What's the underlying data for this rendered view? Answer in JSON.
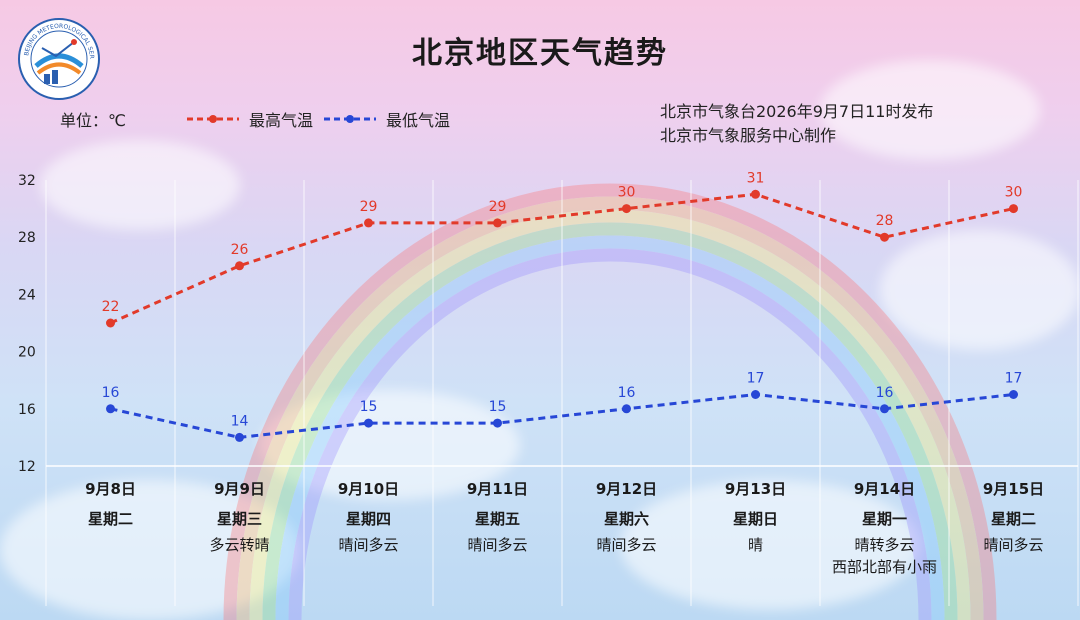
{
  "title": "北京地区天气趋势",
  "unit_label": "单位：℃",
  "issuer_line1": "北京市气象台2026年9月7日11时发布",
  "issuer_line2": "北京市气象服务中心制作",
  "logo_text": "BEIJING METEOROLOGICAL SERVICE",
  "colors": {
    "high": "#e23a2a",
    "low": "#2747d6",
    "grid": "#ffffff"
  },
  "chart_data": {
    "type": "line",
    "title": "北京地区天气趋势",
    "ylabel": "单位：℃",
    "ylim": [
      12,
      32
    ],
    "yticks": [
      12,
      16,
      20,
      24,
      28,
      32
    ],
    "grid": true,
    "legend_position": "top-left",
    "categories": [
      "9月8日",
      "9月9日",
      "9月10日",
      "9月11日",
      "9月12日",
      "9月13日",
      "9月14日",
      "9月15日"
    ],
    "weekdays": [
      "星期二",
      "星期三",
      "星期四",
      "星期五",
      "星期六",
      "星期日",
      "星期一",
      "星期二"
    ],
    "weather": [
      [],
      [
        "多云转晴"
      ],
      [
        "晴间多云"
      ],
      [
        "晴间多云"
      ],
      [
        "晴间多云"
      ],
      [
        "晴"
      ],
      [
        "晴转多云",
        "西部北部有小雨"
      ],
      [
        "晴间多云"
      ]
    ],
    "series": [
      {
        "name": "最高气温",
        "values": [
          22,
          26,
          29,
          29,
          30,
          31,
          28,
          30
        ]
      },
      {
        "name": "最低气温",
        "values": [
          16,
          14,
          15,
          15,
          16,
          17,
          16,
          17
        ]
      }
    ]
  }
}
